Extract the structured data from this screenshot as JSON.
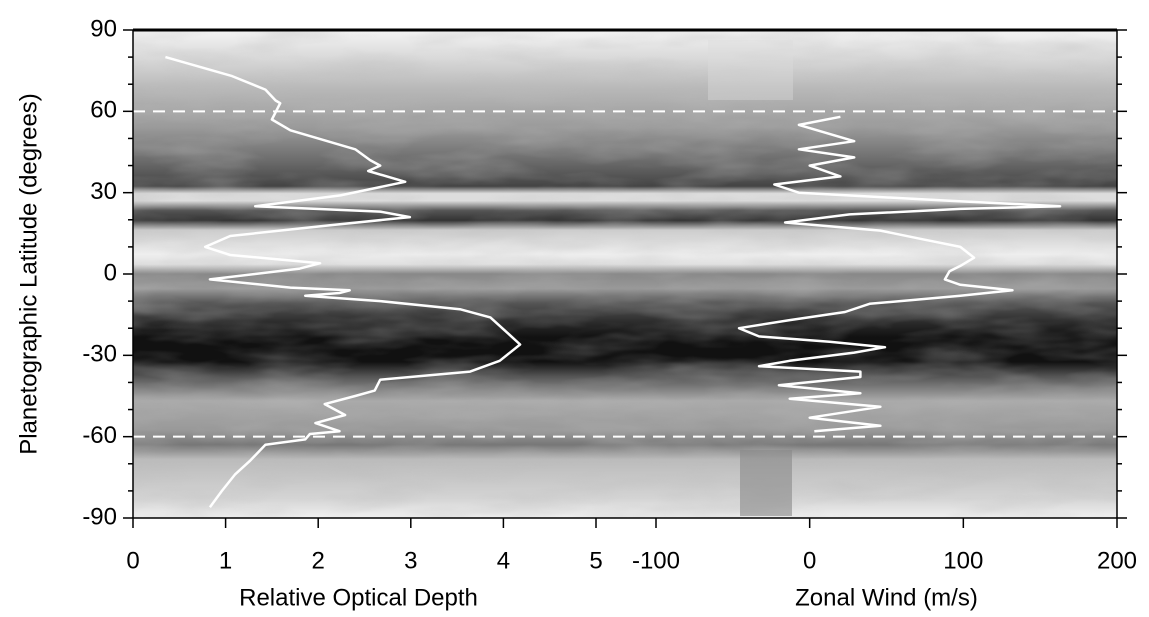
{
  "chart_data": {
    "type": "line",
    "ylabel": "Planetographic Latitude (degrees)",
    "ylim": [
      -90,
      90
    ],
    "yticks": [
      -90,
      -60,
      -30,
      0,
      30,
      60,
      90
    ],
    "yticks_minor": [
      -80,
      -70,
      -50,
      -40,
      -20,
      -10,
      10,
      20,
      40,
      50,
      70,
      80
    ],
    "hlines": [
      60,
      -60
    ],
    "hline_color": "#ffffff",
    "xaxes": [
      {
        "label": "Relative Optical Depth",
        "xlim": [
          0,
          5
        ],
        "xticks": [
          0,
          1,
          2,
          3,
          4,
          5
        ]
      },
      {
        "label": "Zonal Wind (m/s)",
        "xlim": [
          -100,
          200
        ],
        "xticks": [
          -100,
          0,
          100,
          200
        ]
      }
    ],
    "series": [
      {
        "color": "#ffffff",
        "xaxis": 0,
        "values": [
          0.35,
          1.07,
          1.43,
          1.54,
          1.59,
          1.5,
          1.7,
          2.4,
          2.56,
          2.67,
          2.54,
          2.94,
          2.24,
          1.32,
          2.67,
          2.99,
          2.13,
          1.05,
          0.78,
          1.05,
          2.02,
          1.8,
          0.83,
          1.7,
          2.34,
          2.23,
          1.86,
          2.67,
          3.53,
          3.86,
          4.02,
          4.18,
          3.96,
          3.64,
          2.67,
          2.61,
          2.4,
          2.07,
          2.29,
          1.97,
          2.23,
          1.91,
          1.86,
          1.43,
          1.26,
          1.1,
          0.96,
          0.83
        ],
        "lat": [
          80,
          73,
          68,
          64,
          63,
          57,
          53,
          46,
          42,
          40,
          38,
          34,
          29,
          25,
          23,
          21,
          18,
          14,
          10,
          7,
          4,
          2,
          -2,
          -5,
          -6,
          -7,
          -8,
          -10,
          -13,
          -16,
          -21,
          -26,
          -32,
          -36,
          -39,
          -43,
          -45,
          -48,
          -52,
          -55,
          -58,
          -59,
          -61,
          -63,
          -69,
          -74,
          -80,
          -86
        ]
      },
      {
        "color": "#ffffff",
        "xaxis": 1,
        "values": [
          20,
          -7,
          29,
          -7,
          29,
          0,
          20,
          -23,
          -7,
          91,
          163,
          98,
          26,
          -16,
          46,
          72,
          98,
          107,
          98,
          91,
          88,
          98,
          132,
          98,
          39,
          23,
          -13,
          -46,
          -33,
          13,
          49,
          29,
          -13,
          -33,
          33,
          33,
          -20,
          33,
          -13,
          46,
          0,
          46,
          3
        ],
        "lat": [
          58,
          55,
          49,
          46,
          43,
          40,
          36,
          33,
          30,
          27,
          25,
          24,
          22,
          19,
          16,
          13,
          10,
          6,
          3,
          1,
          -2,
          -4,
          -6,
          -8,
          -11,
          -14,
          -17,
          -20,
          -23,
          -25,
          -27,
          -29,
          -32,
          -34,
          -36,
          -38,
          -41,
          -44,
          -46,
          -49,
          -53,
          -56,
          -58
        ]
      }
    ]
  }
}
